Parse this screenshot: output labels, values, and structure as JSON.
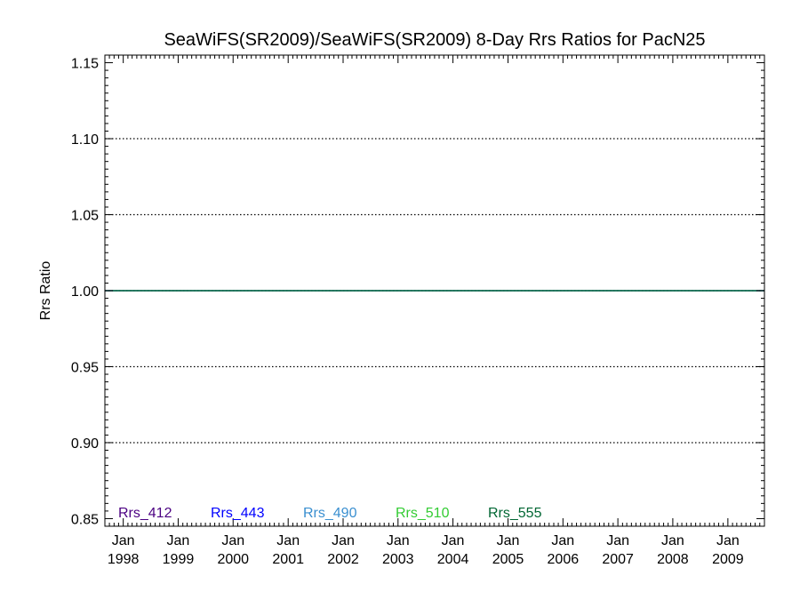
{
  "chart_data": {
    "type": "line",
    "title": "SeaWiFS(SR2009)/SeaWiFS(SR2009) 8-Day Rrs Ratios for PacN25",
    "xlabel": "",
    "ylabel": "Rrs Ratio",
    "ylim": [
      0.845,
      1.155
    ],
    "yticks": [
      0.85,
      0.9,
      0.95,
      1.0,
      1.05,
      1.1,
      1.15
    ],
    "ytick_labels": [
      "0.85",
      "0.90",
      "0.95",
      "1.00",
      "1.05",
      "1.10",
      "1.15"
    ],
    "grid_y": [
      0.9,
      0.95,
      1.0,
      1.05,
      1.1
    ],
    "xlim": [
      "1997-09-01",
      "2009-09-01"
    ],
    "xticks": [
      {
        "date": "1998-01-01",
        "month": "Jan",
        "year": "1998"
      },
      {
        "date": "1999-01-01",
        "month": "Jan",
        "year": "1999"
      },
      {
        "date": "2000-01-01",
        "month": "Jan",
        "year": "2000"
      },
      {
        "date": "2001-01-01",
        "month": "Jan",
        "year": "2001"
      },
      {
        "date": "2002-01-01",
        "month": "Jan",
        "year": "2002"
      },
      {
        "date": "2003-01-01",
        "month": "Jan",
        "year": "2003"
      },
      {
        "date": "2004-01-01",
        "month": "Jan",
        "year": "2004"
      },
      {
        "date": "2005-01-01",
        "month": "Jan",
        "year": "2005"
      },
      {
        "date": "2006-01-01",
        "month": "Jan",
        "year": "2006"
      },
      {
        "date": "2007-01-01",
        "month": "Jan",
        "year": "2007"
      },
      {
        "date": "2008-01-01",
        "month": "Jan",
        "year": "2008"
      },
      {
        "date": "2009-01-01",
        "month": "Jan",
        "year": "2009"
      }
    ],
    "series": [
      {
        "name": "Rrs_412",
        "color": "#4b0082",
        "x": [
          "1997-09-01",
          "2009-09-01"
        ],
        "values": [
          1.0,
          1.0
        ]
      },
      {
        "name": "Rrs_443",
        "color": "#0000ff",
        "x": [
          "1997-09-01",
          "2009-09-01"
        ],
        "values": [
          1.0,
          1.0
        ]
      },
      {
        "name": "Rrs_490",
        "color": "#3a8fd0",
        "x": [
          "1997-09-01",
          "2009-09-01"
        ],
        "values": [
          1.0,
          1.0
        ]
      },
      {
        "name": "Rrs_510",
        "color": "#33cc33",
        "x": [
          "1997-09-01",
          "2009-09-01"
        ],
        "values": [
          1.0,
          1.0
        ]
      },
      {
        "name": "Rrs_555",
        "color": "#006633",
        "x": [
          "1997-09-01",
          "2009-09-01"
        ],
        "values": [
          1.0,
          1.0
        ]
      }
    ],
    "legend_placement": "bottom-left"
  }
}
